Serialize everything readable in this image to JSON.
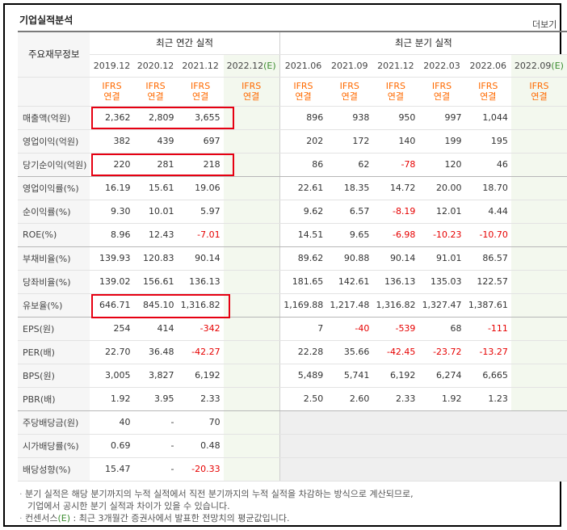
{
  "section_title": "기업실적분석",
  "more_label": "더보기",
  "row_header_label": "주요재무정보",
  "annual_header": "최근 연간 실적",
  "quarter_header": "최근 분기 실적",
  "annual_periods": [
    "2019.12",
    "2020.12",
    "2021.12",
    "2022.12(E)"
  ],
  "quarter_periods": [
    "2021.06",
    "2021.09",
    "2021.12",
    "2022.03",
    "2022.06",
    "2022.09(E)"
  ],
  "ifrs_line1": "IFRS",
  "ifrs_line2": "연결",
  "rows": [
    {
      "label": "매출액(억원)",
      "annual": [
        "2,362",
        "2,809",
        "3,655",
        ""
      ],
      "quarter": [
        "896",
        "938",
        "950",
        "997",
        "1,044",
        ""
      ]
    },
    {
      "label": "영업이익(억원)",
      "annual": [
        "382",
        "439",
        "697",
        ""
      ],
      "quarter": [
        "202",
        "172",
        "140",
        "199",
        "195",
        ""
      ]
    },
    {
      "label": "당기순이익(억원)",
      "annual": [
        "220",
        "281",
        "218",
        ""
      ],
      "quarter": [
        "86",
        "62",
        "-78",
        "120",
        "46",
        ""
      ]
    },
    {
      "label": "영업이익률(%)",
      "annual": [
        "16.19",
        "15.61",
        "19.06",
        ""
      ],
      "quarter": [
        "22.61",
        "18.35",
        "14.72",
        "20.00",
        "18.70",
        ""
      ]
    },
    {
      "label": "순이익률(%)",
      "annual": [
        "9.30",
        "10.01",
        "5.97",
        ""
      ],
      "quarter": [
        "9.62",
        "6.57",
        "-8.19",
        "12.01",
        "4.44",
        ""
      ]
    },
    {
      "label": "ROE(%)",
      "annual": [
        "8.96",
        "12.43",
        "-7.01",
        ""
      ],
      "quarter": [
        "14.51",
        "9.65",
        "-6.98",
        "-10.23",
        "-10.70",
        ""
      ]
    },
    {
      "label": "부채비율(%)",
      "annual": [
        "139.93",
        "120.83",
        "90.14",
        ""
      ],
      "quarter": [
        "89.62",
        "90.88",
        "90.14",
        "91.01",
        "86.57",
        ""
      ]
    },
    {
      "label": "당좌비율(%)",
      "annual": [
        "139.02",
        "156.61",
        "136.13",
        ""
      ],
      "quarter": [
        "181.65",
        "142.61",
        "136.13",
        "135.03",
        "122.57",
        ""
      ]
    },
    {
      "label": "유보율(%)",
      "annual": [
        "646.71",
        "845.10",
        "1,316.82",
        ""
      ],
      "quarter": [
        "1,169.88",
        "1,217.48",
        "1,316.82",
        "1,327.47",
        "1,387.61",
        ""
      ]
    },
    {
      "label": "EPS(원)",
      "annual": [
        "254",
        "414",
        "-342",
        ""
      ],
      "quarter": [
        "7",
        "-40",
        "-539",
        "68",
        "-111",
        ""
      ]
    },
    {
      "label": "PER(배)",
      "annual": [
        "22.70",
        "36.48",
        "-42.27",
        ""
      ],
      "quarter": [
        "22.28",
        "35.66",
        "-42.45",
        "-23.72",
        "-13.27",
        ""
      ]
    },
    {
      "label": "BPS(원)",
      "annual": [
        "3,005",
        "3,827",
        "6,192",
        ""
      ],
      "quarter": [
        "5,489",
        "5,741",
        "6,192",
        "6,274",
        "6,665",
        ""
      ]
    },
    {
      "label": "PBR(배)",
      "annual": [
        "1.92",
        "3.95",
        "2.33",
        ""
      ],
      "quarter": [
        "2.50",
        "2.60",
        "2.33",
        "1.92",
        "1.23",
        ""
      ]
    },
    {
      "label": "주당배당금(원)",
      "annual": [
        "40",
        "-",
        "70",
        ""
      ],
      "quarter": [
        "",
        "",
        "",
        "",
        "",
        ""
      ]
    },
    {
      "label": "시가배당률(%)",
      "annual": [
        "0.69",
        "-",
        "0.48",
        ""
      ],
      "quarter": [
        "",
        "",
        "",
        "",
        "",
        ""
      ]
    },
    {
      "label": "배당성향(%)",
      "annual": [
        "15.47",
        "-",
        "-20.33",
        ""
      ],
      "quarter": [
        "",
        "",
        "",
        "",
        "",
        ""
      ]
    }
  ],
  "notes": {
    "line1": "분기 실적은 해당 분기까지의 누적 실적에서 직전 분기까지의 누적 실적을 차감하는 방식으로 계산되므로,",
    "line2": "기업에서 공시한 분기 실적과 차이가 있을 수 있습니다.",
    "line3_prefix": "컨센서스",
    "line3_mark": "(E)",
    "line3_suffix": " : 최근 3개월간 증권사에서 발표한 전망치의 평균값입니다."
  },
  "colors": {
    "ifrs": "#ff6a00",
    "negative": "#e60000",
    "estimate_mark": "#3a8b2e",
    "highlight_box": "#e60012"
  },
  "highlighted_rows": [
    "매출액(억원)",
    "당기순이익(억원)",
    "유보율(%)"
  ]
}
